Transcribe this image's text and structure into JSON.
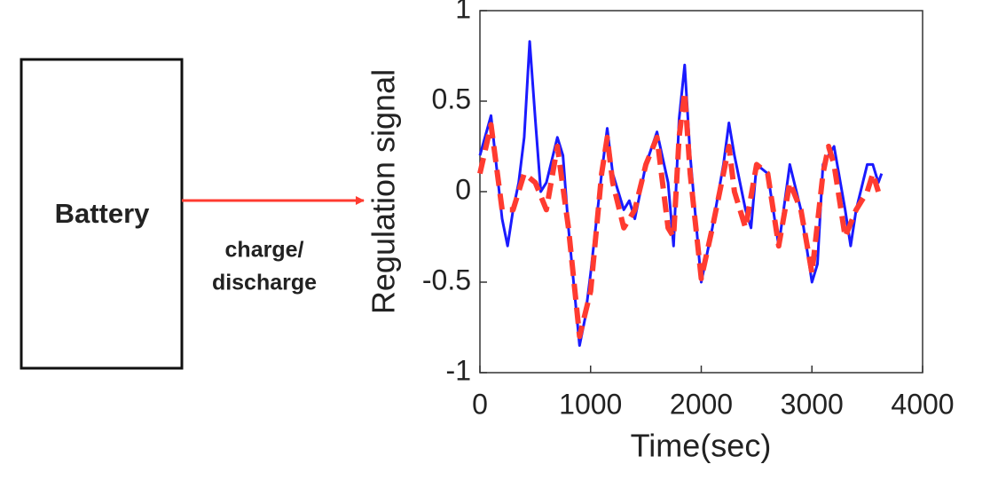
{
  "diagram": {
    "box_label": "Battery",
    "arrow_label": [
      "charge/",
      "discharge"
    ]
  },
  "chart_data": {
    "type": "line",
    "xlabel": "Time(sec)",
    "ylabel": "Regulation signal",
    "xlim": [
      0,
      4000
    ],
    "xticks": [
      0,
      1000,
      2000,
      3000,
      4000
    ],
    "ylim": [
      -1,
      1
    ],
    "yticks": [
      -1,
      -0.5,
      0,
      0.5,
      1
    ],
    "series": [
      {
        "color": "#1a1aff",
        "dashed": false,
        "x": [
          0,
          100,
          200,
          250,
          300,
          350,
          400,
          450,
          500,
          550,
          600,
          700,
          750,
          800,
          900,
          950,
          1000,
          1100,
          1150,
          1200,
          1300,
          1350,
          1400,
          1500,
          1600,
          1700,
          1750,
          1800,
          1850,
          1900,
          2000,
          2100,
          2200,
          2250,
          2300,
          2400,
          2450,
          2500,
          2600,
          2700,
          2800,
          2900,
          3000,
          3050,
          3100,
          3200,
          3300,
          3350,
          3400,
          3500,
          3550,
          3600,
          3630
        ],
        "values": [
          0.2,
          0.42,
          -0.15,
          -0.3,
          -0.1,
          0.05,
          0.3,
          0.83,
          0.4,
          0.0,
          0.05,
          0.3,
          0.2,
          -0.2,
          -0.85,
          -0.7,
          -0.45,
          0.1,
          0.35,
          0.1,
          -0.1,
          -0.05,
          -0.15,
          0.15,
          0.33,
          0.05,
          -0.3,
          0.4,
          0.7,
          0.2,
          -0.5,
          -0.2,
          0.15,
          0.38,
          0.2,
          -0.1,
          -0.2,
          0.15,
          0.1,
          -0.3,
          0.15,
          -0.1,
          -0.5,
          -0.4,
          0.15,
          0.25,
          -0.1,
          -0.3,
          -0.1,
          0.15,
          0.15,
          0.05,
          0.1
        ]
      },
      {
        "color": "#ff3b30",
        "dashed": true,
        "x": [
          0,
          100,
          200,
          300,
          400,
          500,
          600,
          700,
          800,
          900,
          1000,
          1100,
          1150,
          1200,
          1300,
          1400,
          1500,
          1600,
          1700,
          1750,
          1800,
          1850,
          1900,
          2000,
          2100,
          2200,
          2250,
          2300,
          2400,
          2500,
          2600,
          2700,
          2800,
          2900,
          3000,
          3100,
          3150,
          3200,
          3300,
          3400,
          3500,
          3550,
          3600
        ],
        "values": [
          0.1,
          0.37,
          -0.1,
          -0.1,
          0.1,
          0.05,
          -0.1,
          0.25,
          -0.2,
          -0.8,
          -0.55,
          0.1,
          0.3,
          0.05,
          -0.2,
          -0.1,
          0.15,
          0.3,
          -0.2,
          -0.25,
          0.3,
          0.55,
          0.1,
          -0.48,
          -0.2,
          0.1,
          0.25,
          0.0,
          -0.2,
          0.15,
          0.1,
          -0.3,
          0.05,
          -0.1,
          -0.45,
          0.1,
          0.25,
          0.15,
          -0.25,
          -0.1,
          0.0,
          0.1,
          0.0
        ]
      }
    ]
  }
}
